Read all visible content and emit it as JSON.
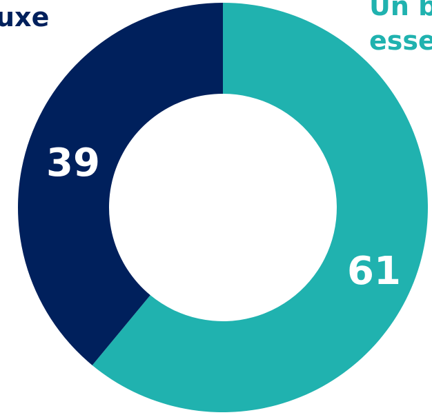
{
  "chart_data": {
    "type": "pie",
    "donut": true,
    "title": "",
    "categories": [
      "Un bien essentiel",
      "Un produit de luxe"
    ],
    "values": [
      61,
      39
    ],
    "labels": [
      "61",
      "39"
    ],
    "colors": [
      "#20b2af",
      "#00205c"
    ],
    "legend": "none"
  },
  "annotations": {
    "left_label_visible": "uxe",
    "right_label_visible_line1": "Un b",
    "right_label_visible_line2": "esse"
  }
}
